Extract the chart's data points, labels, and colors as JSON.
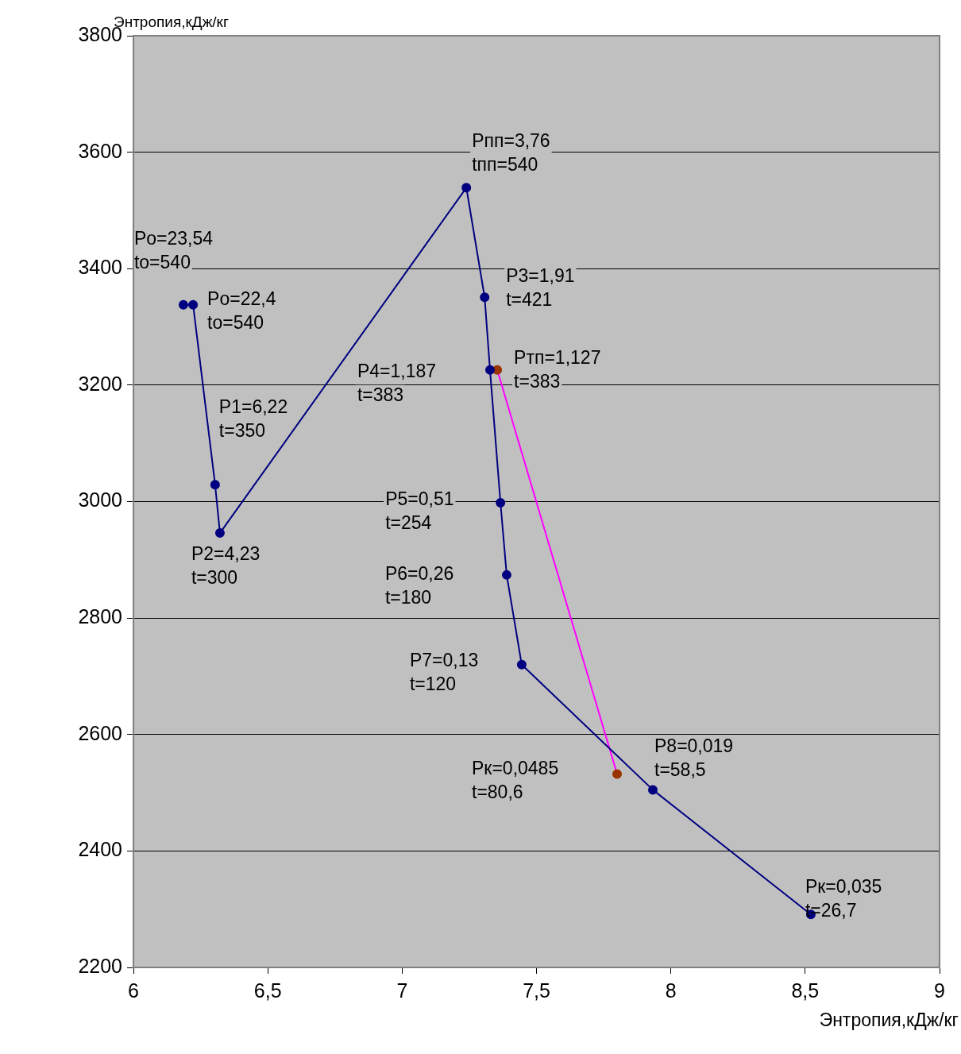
{
  "chart_data": {
    "type": "line",
    "xlabel": "Энтропия,кДж/кг",
    "ylabel": "Энтропия,кДж/кг",
    "xlim": [
      6,
      9
    ],
    "xticks": [
      6,
      {
        "value": 6.5,
        "label": "6,5"
      },
      7,
      {
        "value": 7.5,
        "label": "7,5"
      },
      8,
      {
        "value": 8.5,
        "label": "8,5"
      },
      9
    ],
    "ylim": [
      2200,
      3800
    ],
    "yticks": [
      2200,
      2400,
      2600,
      2800,
      3000,
      3200,
      3400,
      3600,
      3800
    ],
    "grid": "y",
    "legend": false,
    "marker": "circle",
    "line_style": "solid",
    "series": [
      {
        "color": "#000080",
        "x": [
          6.186,
          6.222,
          6.304,
          6.322,
          7.239,
          7.307,
          7.327,
          7.366,
          7.389,
          7.445,
          7.933,
          8.521
        ],
        "values": [
          3338,
          3338,
          3029,
          2946,
          3539,
          3351,
          3226,
          2998,
          2874,
          2720,
          2505,
          2291
        ]
      },
      {
        "color": "#ff00ff",
        "colors": [
          "#993300",
          "#993300"
        ],
        "x": [
          7.354,
          7.8
        ],
        "values": [
          3226,
          2532
        ]
      }
    ],
    "annotations": [
      {
        "text": "Po=23,54\nto=540",
        "x": 6.186,
        "y": 3338
      },
      {
        "text": "Po=22,4\nto=540",
        "x": 6.222,
        "y": 3338
      },
      {
        "text": "P1=6,22\nt=350",
        "x": 6.304,
        "y": 3029
      },
      {
        "text": "P2=4,23\nt=300",
        "x": 6.322,
        "y": 2946
      },
      {
        "text": "Pпп=3,76\ntпп=540",
        "x": 7.239,
        "y": 3539
      },
      {
        "text": "P3=1,91\nt=421",
        "x": 7.307,
        "y": 3351
      },
      {
        "text": "Pтп=1,127\nt=383",
        "x": 7.354,
        "y": 3226
      },
      {
        "text": "P4=1,187\nt=383",
        "x": 7.327,
        "y": 3226
      },
      {
        "text": "P5=0,51\nt=254",
        "x": 7.366,
        "y": 2998
      },
      {
        "text": "P6=0,26\nt=180",
        "x": 7.389,
        "y": 2874
      },
      {
        "text": "P7=0,13\nt=120",
        "x": 7.445,
        "y": 2720
      },
      {
        "text": "P8=0,019\nt=58,5",
        "x": 7.933,
        "y": 2505
      },
      "Pк=0,0485\nt=80,6",
      {
        "text": "Pк=0,035\nt=26,7",
        "x": 8.521,
        "y": 2291
      }
    ]
  }
}
